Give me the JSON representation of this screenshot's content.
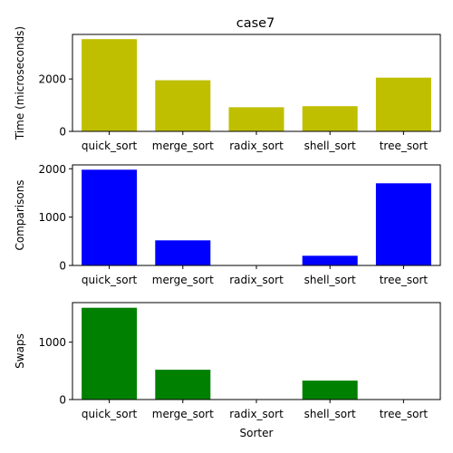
{
  "chart_data": [
    {
      "type": "bar",
      "title": "case7",
      "xlabel": "",
      "ylabel": "Time (microseconds)",
      "color": "#bfbf00",
      "categories": [
        "quick_sort",
        "merge_sort",
        "radix_sort",
        "shell_sort",
        "tree_sort"
      ],
      "values": [
        3520,
        1950,
        920,
        960,
        2050
      ],
      "ylim": [
        0,
        3700
      ],
      "yticks": [
        0,
        2000
      ],
      "grid": false
    },
    {
      "type": "bar",
      "title": "",
      "xlabel": "",
      "ylabel": "Comparisons",
      "color": "#0000ff",
      "categories": [
        "quick_sort",
        "merge_sort",
        "radix_sort",
        "shell_sort",
        "tree_sort"
      ],
      "values": [
        1980,
        520,
        0,
        200,
        1700
      ],
      "ylim": [
        0,
        2080
      ],
      "yticks": [
        0,
        1000,
        2000
      ],
      "grid": false
    },
    {
      "type": "bar",
      "title": "",
      "xlabel": "Sorter",
      "ylabel": "Swaps",
      "color": "#008000",
      "categories": [
        "quick_sort",
        "merge_sort",
        "radix_sort",
        "shell_sort",
        "tree_sort"
      ],
      "values": [
        1600,
        520,
        0,
        330,
        0
      ],
      "ylim": [
        0,
        1690
      ],
      "yticks": [
        0,
        1000
      ],
      "grid": false
    }
  ]
}
